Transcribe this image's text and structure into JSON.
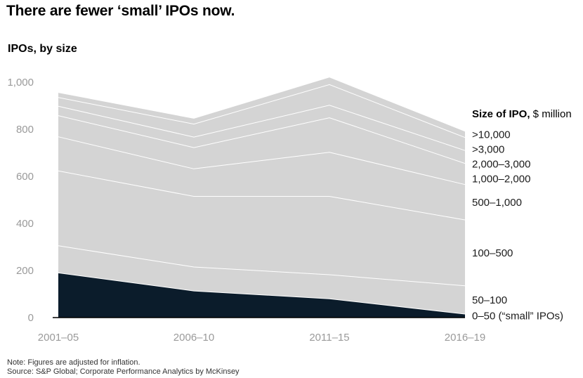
{
  "header": {
    "title": "There are fewer ‘small’ IPOs now.",
    "subtitle": "IPOs, by size"
  },
  "footer": {
    "note": "Note: Figures are adjusted for inflation.",
    "source": "Source: S&P Global; Corporate Performance Analytics by McKinsey"
  },
  "colors": {
    "fill_light": "#d4d4d4",
    "fill_dark": "#0b1c2b",
    "boundary": "#ffffff",
    "axis": "#000000",
    "tick_text": "#9a9a9a"
  },
  "chart_data": {
    "type": "area",
    "stacked": true,
    "title": "There are fewer ‘small’ IPOs now.",
    "ylabel": "IPOs, by size",
    "xlabel": "",
    "categories": [
      "2001–05",
      "2006–10",
      "2011–15",
      "2016–19"
    ],
    "ylim": [
      0,
      1000
    ],
    "yticks": [
      0,
      200,
      400,
      600,
      800,
      1000
    ],
    "ytick_labels": [
      "0",
      "200",
      "400",
      "600",
      "800",
      "1,000"
    ],
    "legend_title_bold": "Size of IPO,",
    "legend_title_rest": " $ million",
    "series": [
      {
        "name": "0–50 (“small” IPOs)",
        "values": [
          190,
          113,
          80,
          15
        ]
      },
      {
        "name": "50–100",
        "values": [
          115,
          102,
          102,
          120
        ]
      },
      {
        "name": "100–500",
        "values": [
          318,
          300,
          333,
          280
        ]
      },
      {
        "name": "500–1,000",
        "values": [
          145,
          117,
          187,
          150
        ]
      },
      {
        "name": "1,000–2,000",
        "values": [
          90,
          90,
          147,
          90
        ]
      },
      {
        "name": "2,000–3,000",
        "values": [
          40,
          45,
          53,
          55
        ]
      },
      {
        "name": ">3,000",
        "values": [
          37,
          55,
          88,
          55
        ]
      },
      {
        "name": ">10,000",
        "values": [
          20,
          23,
          30,
          25
        ]
      }
    ]
  }
}
